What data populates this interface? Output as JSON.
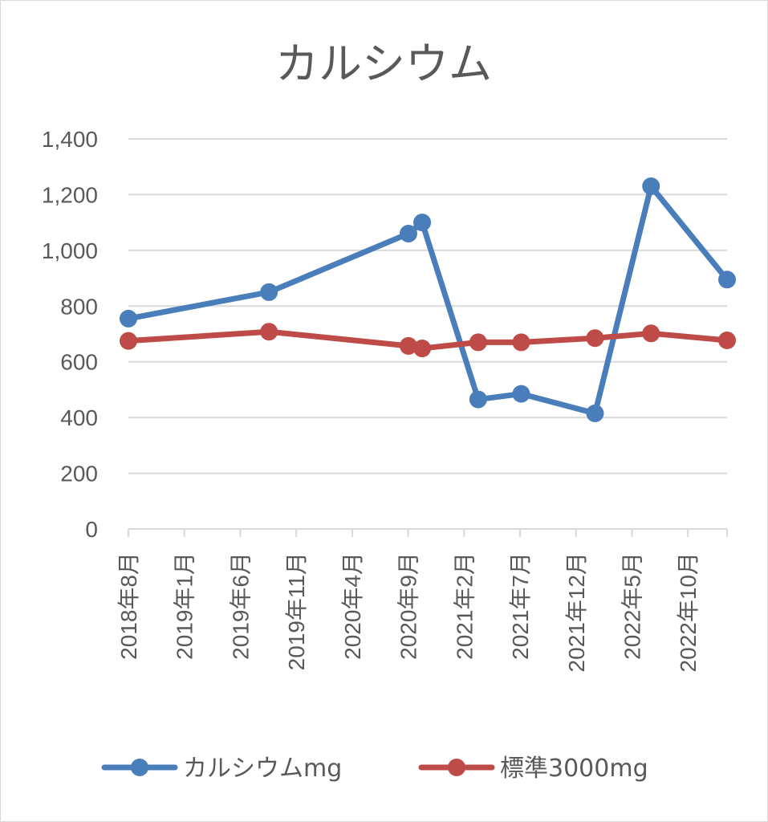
{
  "chart_data": {
    "type": "line",
    "title": "カルシウム",
    "xlabel": "",
    "ylabel": "",
    "ylim": [
      0,
      1400
    ],
    "y_ticks": [
      0,
      200,
      400,
      600,
      800,
      1000,
      1200,
      1400
    ],
    "y_tick_labels": [
      "0",
      "200",
      "400",
      "600",
      "800",
      "1,000",
      "1,200",
      "1,400"
    ],
    "x_axis_type": "date",
    "x_range": [
      "2018-08",
      "2023-01"
    ],
    "x_tick_labels": [
      "2018年8月",
      "2019年1月",
      "2019年6月",
      "2019年11月",
      "2020年4月",
      "2020年9月",
      "2021年2月",
      "2021年7月",
      "2021年12月",
      "2022年5月",
      "2022年10月"
    ],
    "grid": true,
    "legend_position": "bottom",
    "series": [
      {
        "name": "カルシウムmg",
        "color": "#4a7ebb",
        "points": [
          {
            "x": "2018-08-01",
            "y": 755
          },
          {
            "x": "2019-08-15",
            "y": 850
          },
          {
            "x": "2020-08-25",
            "y": 1060
          },
          {
            "x": "2020-10-01",
            "y": 1100
          },
          {
            "x": "2021-03-01",
            "y": 465
          },
          {
            "x": "2021-06-25",
            "y": 485
          },
          {
            "x": "2022-01-10",
            "y": 415
          },
          {
            "x": "2022-06-10",
            "y": 1230
          },
          {
            "x": "2023-01-01",
            "y": 895
          }
        ]
      },
      {
        "name": "標準3000mg",
        "color": "#be4b48",
        "points": [
          {
            "x": "2018-08-01",
            "y": 675
          },
          {
            "x": "2019-08-15",
            "y": 708
          },
          {
            "x": "2020-08-25",
            "y": 657
          },
          {
            "x": "2020-10-01",
            "y": 648
          },
          {
            "x": "2021-03-01",
            "y": 670
          },
          {
            "x": "2021-06-25",
            "y": 670
          },
          {
            "x": "2022-01-10",
            "y": 685
          },
          {
            "x": "2022-06-10",
            "y": 702
          },
          {
            "x": "2023-01-01",
            "y": 677
          }
        ]
      }
    ]
  }
}
